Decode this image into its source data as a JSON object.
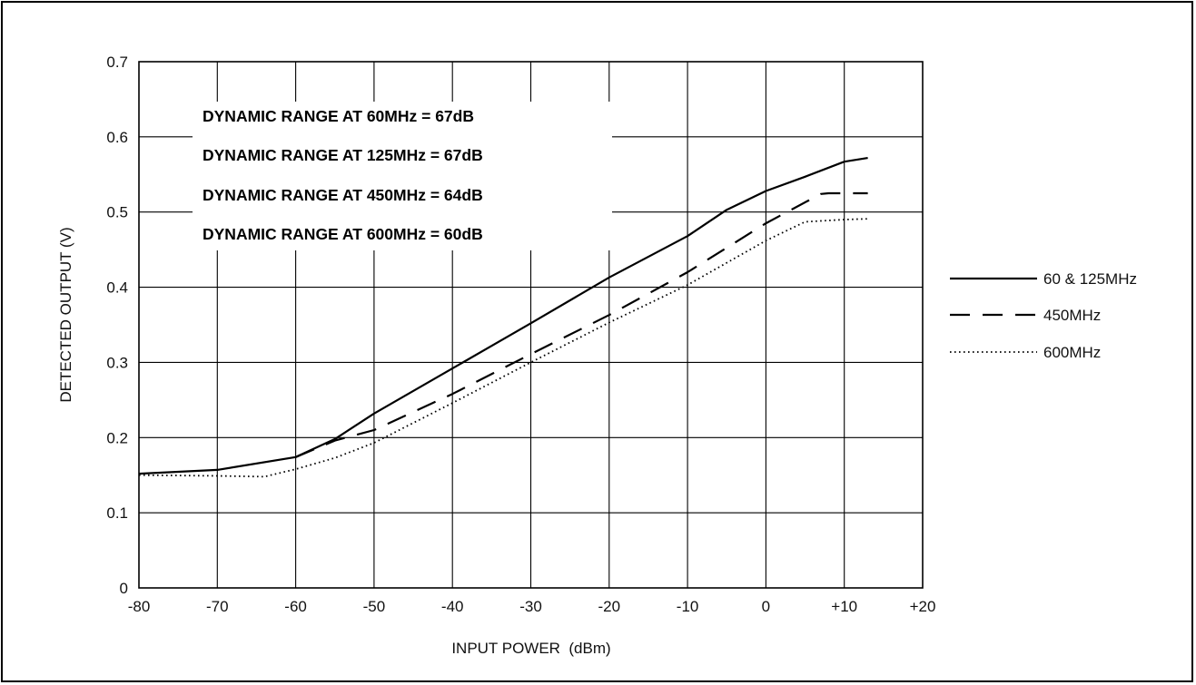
{
  "chart_data": {
    "type": "line",
    "title": "",
    "xlabel": "INPUT POWER  (dBm)",
    "ylabel": "DETECTED OUTPUT (V)",
    "xlim": [
      -80,
      20
    ],
    "ylim": [
      0,
      0.7
    ],
    "grid": true,
    "legend_position": "right",
    "x_ticks": [
      -80,
      -70,
      -60,
      -50,
      -40,
      -30,
      -20,
      -10,
      0,
      10,
      20
    ],
    "x_tick_labels": [
      "-80",
      "-70",
      "-60",
      "-50",
      "-40",
      "-30",
      "-20",
      "-10",
      "0",
      "+10",
      "+20"
    ],
    "y_ticks": [
      0,
      0.1,
      0.2,
      0.3,
      0.4,
      0.5,
      0.6,
      0.7
    ],
    "y_tick_labels": [
      "0",
      "0.1",
      "0.2",
      "0.3",
      "0.4",
      "0.5",
      "0.6",
      "0.7"
    ],
    "annotations": [
      "DYNAMIC RANGE AT 60MHz = 67dB",
      "DYNAMIC RANGE AT 125MHz = 67dB",
      "DYNAMIC RANGE AT 450MHz = 64dB",
      "DYNAMIC RANGE AT 600MHz = 60dB"
    ],
    "series": [
      {
        "name": "60 & 125MHz",
        "style": "solid",
        "x": [
          -80,
          -70,
          -60,
          -55,
          -50,
          -40,
          -30,
          -20,
          -10,
          -5,
          0,
          5,
          10,
          13
        ],
        "y": [
          0.152,
          0.157,
          0.174,
          0.198,
          0.232,
          0.292,
          0.352,
          0.413,
          0.468,
          0.503,
          0.528,
          0.547,
          0.567,
          0.572
        ]
      },
      {
        "name": "450MHz",
        "style": "dashed",
        "x": [
          -60,
          -55,
          -50,
          -40,
          -30,
          -20,
          -10,
          0,
          7,
          8,
          13
        ],
        "y": [
          0.174,
          0.196,
          0.21,
          0.258,
          0.311,
          0.363,
          0.42,
          0.485,
          0.524,
          0.525,
          0.525
        ]
      },
      {
        "name": "600MHz",
        "style": "dotted",
        "x": [
          -80,
          -70,
          -64,
          -60,
          -55,
          -50,
          -40,
          -30,
          -20,
          -10,
          0,
          5,
          10,
          13
        ],
        "y": [
          0.15,
          0.149,
          0.148,
          0.158,
          0.173,
          0.193,
          0.246,
          0.3,
          0.353,
          0.403,
          0.462,
          0.487,
          0.49,
          0.491
        ]
      }
    ]
  }
}
